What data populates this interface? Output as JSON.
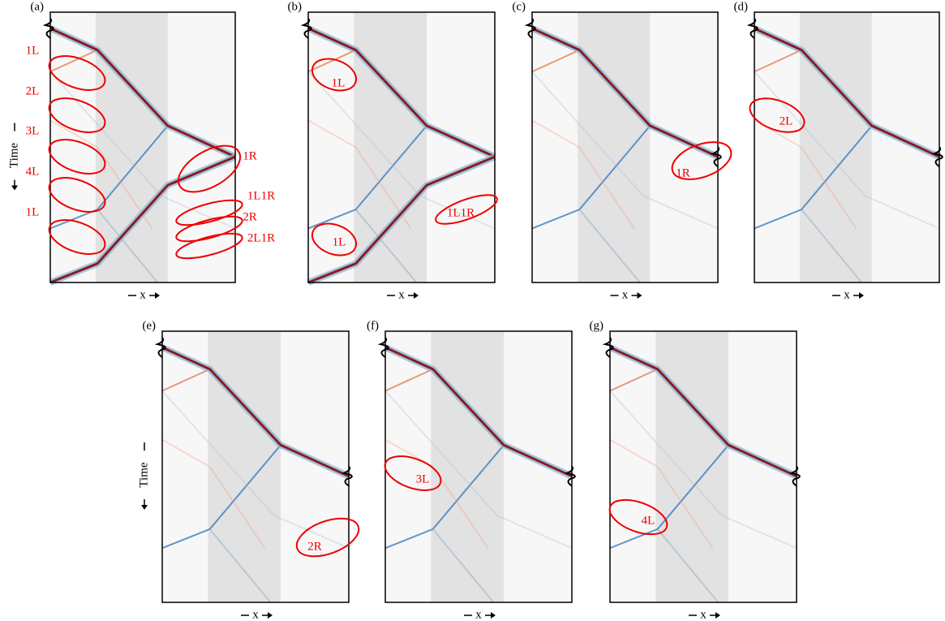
{
  "panels": [
    {
      "label": "(a)",
      "xlabel": "x",
      "ylabel": "Time",
      "annotations": [
        "1L",
        "2L",
        "3L",
        "4L",
        "1L",
        "1R",
        "1L1R",
        "2R",
        "2L1R"
      ]
    },
    {
      "label": "(b)",
      "xlabel": "x",
      "annotations": [
        "1L",
        "1L",
        "1L1R"
      ]
    },
    {
      "label": "(c)",
      "xlabel": "x",
      "annotations": [
        "1R"
      ]
    },
    {
      "label": "(d)",
      "xlabel": "x",
      "annotations": [
        "2L"
      ]
    },
    {
      "label": "(e)",
      "xlabel": "x",
      "ylabel": "Time",
      "annotations": [
        "2R"
      ]
    },
    {
      "label": "(f)",
      "xlabel": "x",
      "annotations": [
        "3L"
      ]
    },
    {
      "label": "(g)",
      "xlabel": "x",
      "annotations": [
        "4L"
      ]
    }
  ]
}
